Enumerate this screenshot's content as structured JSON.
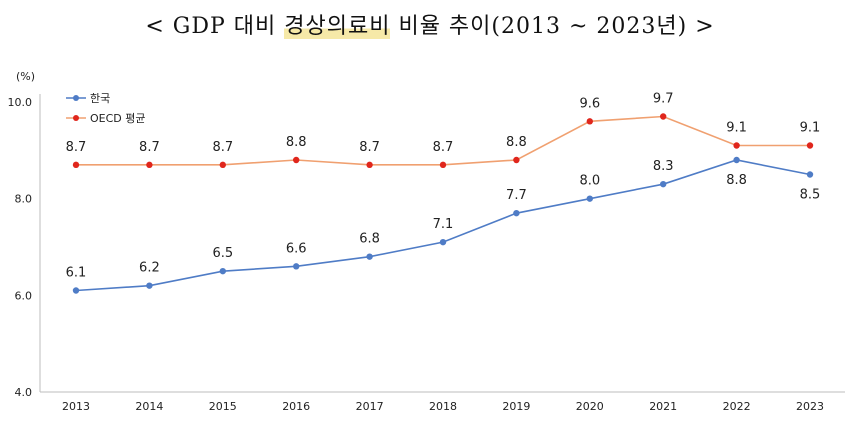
{
  "title": {
    "open": "<",
    "pre": "GDP 대비 ",
    "highlight": "경상의료비",
    "post": " 비율 추이(2013 ~ 2023년)",
    "close": ">"
  },
  "chart_data": {
    "type": "line",
    "unit": "(%)",
    "categories": [
      "2013",
      "2014",
      "2015",
      "2016",
      "2017",
      "2018",
      "2019",
      "2020",
      "2021",
      "2022",
      "2023"
    ],
    "ylim": [
      4.0,
      10.0
    ],
    "yticks": [
      "4.0",
      "6.0",
      "8.0",
      "10.0"
    ],
    "grid": false,
    "legend_position": "top-left",
    "series": [
      {
        "name": "한국",
        "color": "#4f7cc6",
        "values": [
          6.1,
          6.2,
          6.5,
          6.6,
          6.8,
          7.1,
          7.7,
          8.0,
          8.3,
          8.8,
          8.5
        ],
        "labels": [
          "6.1",
          "6.2",
          "6.5",
          "6.6",
          "6.8",
          "7.1",
          "7.7",
          "8.0",
          "8.3",
          "8.8",
          "8.5"
        ]
      },
      {
        "name": "OECD 평균",
        "color": "#f0a070",
        "marker_color": "#e0261c",
        "values": [
          8.7,
          8.7,
          8.7,
          8.8,
          8.7,
          8.7,
          8.8,
          9.6,
          9.7,
          9.1,
          9.1
        ],
        "labels": [
          "8.7",
          "8.7",
          "8.7",
          "8.8",
          "8.7",
          "8.7",
          "8.8",
          "9.6",
          "9.7",
          "9.1",
          "9.1"
        ]
      }
    ]
  }
}
